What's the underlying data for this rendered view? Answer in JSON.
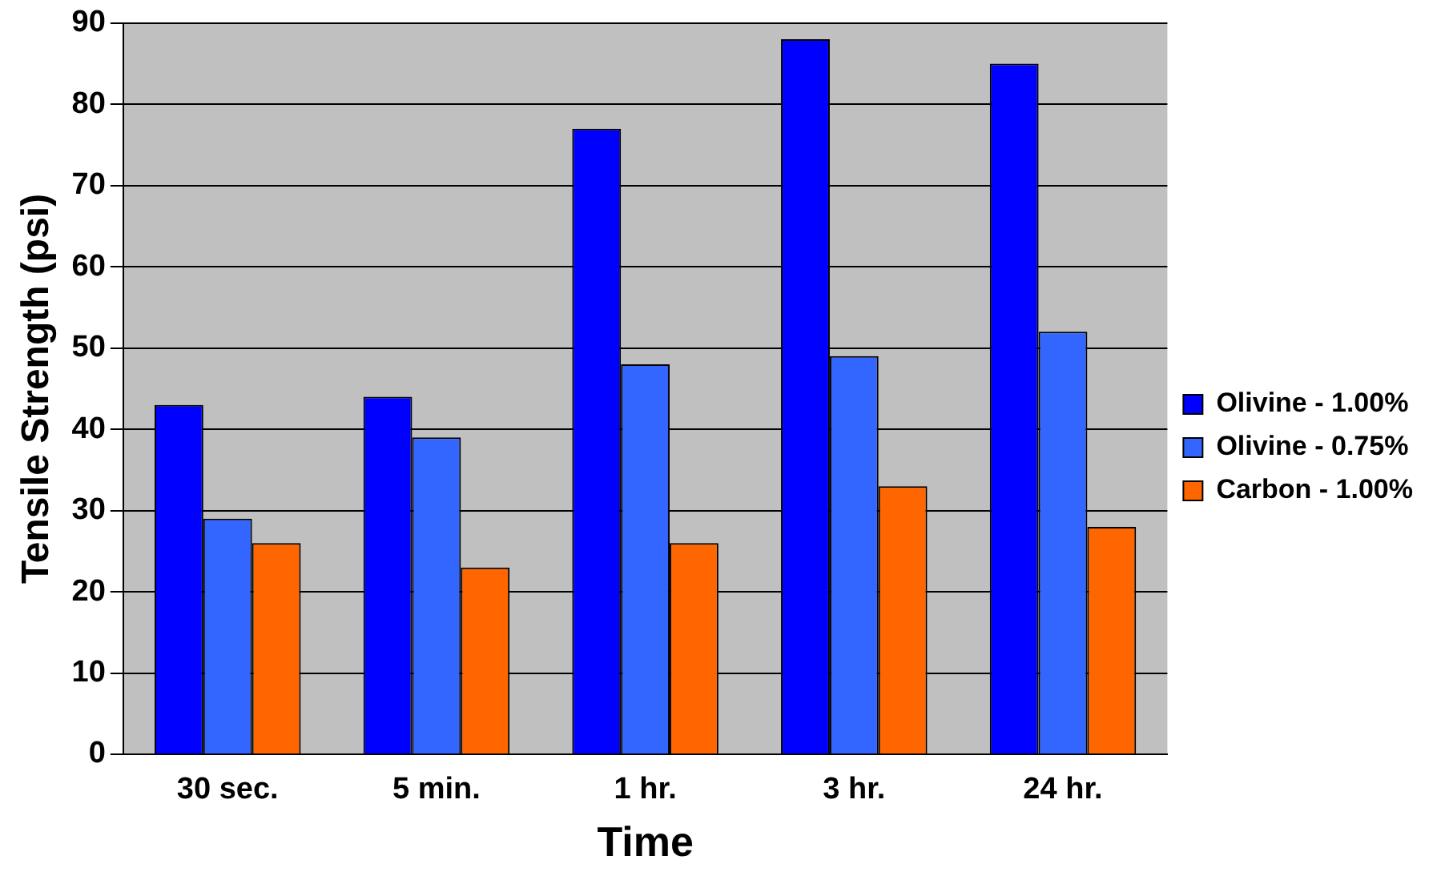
{
  "chart_data": {
    "type": "bar",
    "xlabel": "Time",
    "ylabel": "Tensile Strength (psi)",
    "categories": [
      "30 sec.",
      "5 min.",
      "1 hr.",
      "3 hr.",
      "24 hr."
    ],
    "series": [
      {
        "name": "Olivine - 1.00%",
        "color": "#0000ff",
        "values": [
          43,
          44,
          77,
          88,
          85
        ]
      },
      {
        "name": "Olivine - 0.75%",
        "color": "#3366ff",
        "values": [
          29,
          39,
          48,
          49,
          52
        ]
      },
      {
        "name": "Carbon - 1.00%",
        "color": "#ff6600",
        "values": [
          26,
          23,
          26,
          33,
          28
        ]
      }
    ],
    "ylim": [
      0,
      90
    ],
    "yticks": [
      0,
      10,
      20,
      30,
      40,
      50,
      60,
      70,
      80,
      90
    ],
    "grid": "y",
    "legend": "right"
  }
}
